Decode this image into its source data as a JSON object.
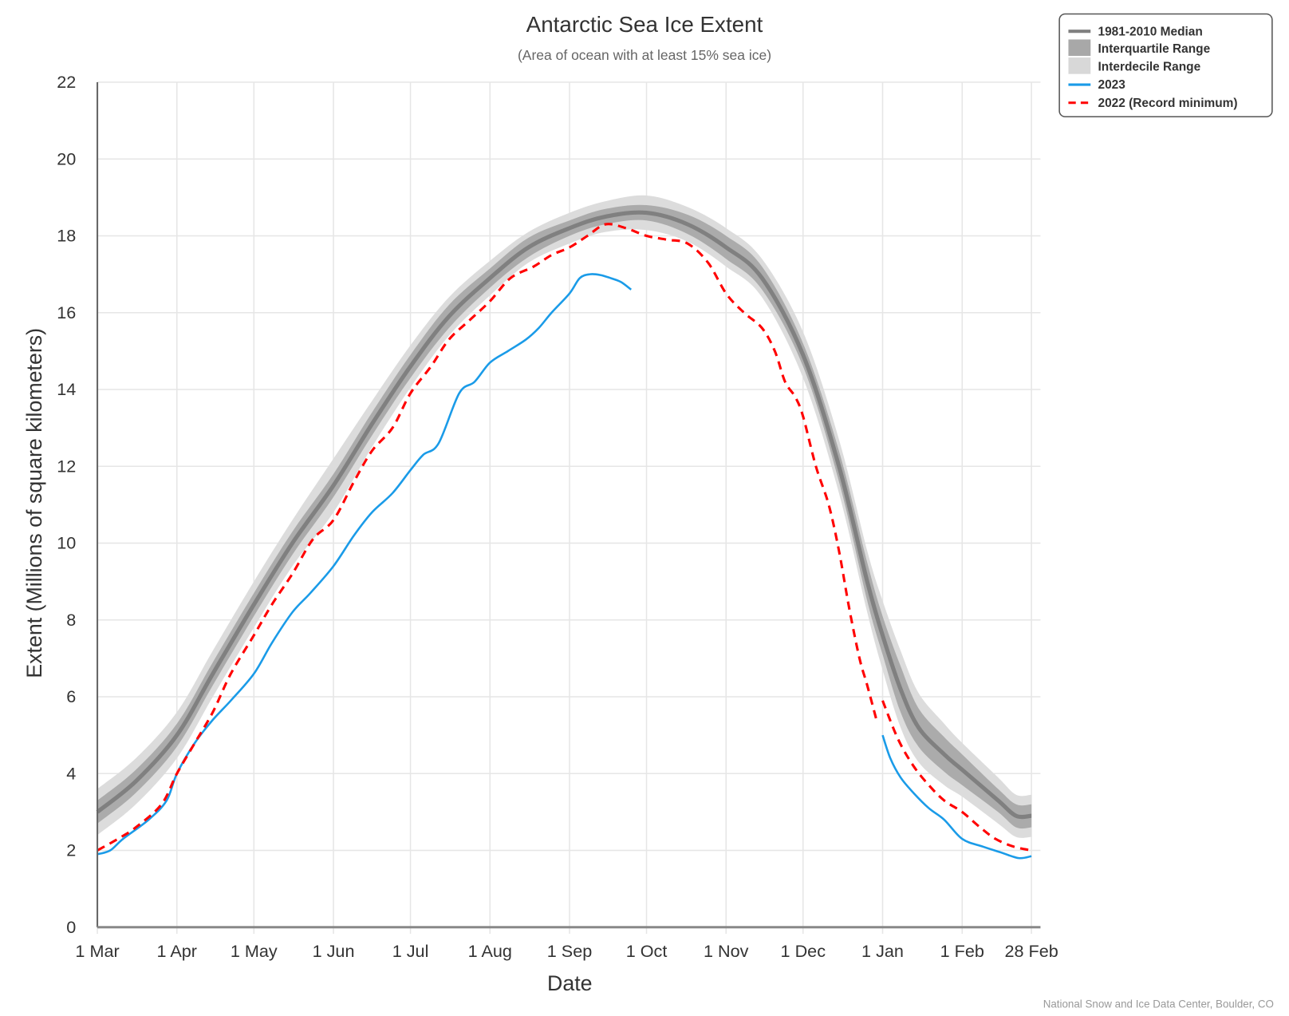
{
  "chart_data": {
    "type": "line",
    "title": "Antarctic Sea Ice Extent",
    "subtitle": "(Area of ocean with at least 15% sea ice)",
    "xlabel": "Date",
    "ylabel": "Extent (Millions of square kilometers)",
    "x_units": "days since 1 Mar",
    "xlim": [
      0,
      364
    ],
    "ylim": [
      0,
      22
    ],
    "yticks": [
      0,
      2,
      4,
      6,
      8,
      10,
      12,
      14,
      16,
      18,
      20,
      22
    ],
    "xticks": [
      {
        "day": 0,
        "label": "1 Mar"
      },
      {
        "day": 31,
        "label": "1 Apr"
      },
      {
        "day": 61,
        "label": "1 May"
      },
      {
        "day": 92,
        "label": "1 Jun"
      },
      {
        "day": 122,
        "label": "1 Jul"
      },
      {
        "day": 153,
        "label": "1 Aug"
      },
      {
        "day": 184,
        "label": "1 Sep"
      },
      {
        "day": 214,
        "label": "1 Oct"
      },
      {
        "day": 245,
        "label": "1 Nov"
      },
      {
        "day": 275,
        "label": "1 Dec"
      },
      {
        "day": 306,
        "label": "1 Jan"
      },
      {
        "day": 337,
        "label": "1 Feb"
      },
      {
        "day": 364,
        "label": "28 Feb"
      }
    ],
    "grid": true,
    "legend_position": "top-right",
    "legend": [
      "1981-2010 Median",
      "Interquartile Range",
      "Interdecile Range",
      "2023",
      "2022 (Record minimum)"
    ],
    "median": {
      "name": "1981-2010 Median",
      "color": "#808080",
      "x": [
        0,
        15,
        31,
        45,
        61,
        76,
        92,
        107,
        122,
        137,
        153,
        168,
        184,
        198,
        214,
        230,
        245,
        259,
        275,
        289,
        300,
        306,
        313,
        320,
        330,
        337,
        351,
        358,
        364
      ],
      "y": [
        3.0,
        3.8,
        5.0,
        6.6,
        8.4,
        10.0,
        11.5,
        13.1,
        14.6,
        15.9,
        16.9,
        17.7,
        18.2,
        18.5,
        18.6,
        18.3,
        17.7,
        16.9,
        14.9,
        12.0,
        9.0,
        7.6,
        6.2,
        5.2,
        4.5,
        4.1,
        3.3,
        2.9,
        2.9
      ],
      "iqr": [
        0.3,
        0.3,
        0.3,
        0.3,
        0.3,
        0.3,
        0.3,
        0.3,
        0.3,
        0.3,
        0.25,
        0.25,
        0.2,
        0.2,
        0.2,
        0.25,
        0.3,
        0.3,
        0.3,
        0.4,
        0.5,
        0.5,
        0.6,
        0.5,
        0.45,
        0.4,
        0.3,
        0.3,
        0.3
      ],
      "idr": [
        0.6,
        0.6,
        0.6,
        0.6,
        0.6,
        0.6,
        0.7,
        0.6,
        0.55,
        0.5,
        0.45,
        0.4,
        0.4,
        0.4,
        0.45,
        0.45,
        0.5,
        0.5,
        0.6,
        0.7,
        0.8,
        0.9,
        1.0,
        0.9,
        0.8,
        0.7,
        0.6,
        0.55,
        0.55
      ]
    },
    "series": [
      {
        "name": "2023",
        "color": "#1a9be8",
        "style": "solid",
        "segments": [
          {
            "x": [
              0,
              5,
              10,
              20,
              27,
              31,
              38,
              45,
              52,
              61,
              68,
              76,
              83,
              92,
              100,
              107,
              115,
              122,
              127,
              133,
              141,
              147,
              153,
              160,
              167,
              172,
              177,
              184,
              188,
              192,
              196,
              200,
              204,
              208
            ],
            "y": [
              1.9,
              2.0,
              2.3,
              2.8,
              3.3,
              4.0,
              4.8,
              5.4,
              5.9,
              6.6,
              7.4,
              8.2,
              8.7,
              9.4,
              10.2,
              10.8,
              11.3,
              11.9,
              12.3,
              12.6,
              13.9,
              14.2,
              14.7,
              15.0,
              15.3,
              15.6,
              16.0,
              16.5,
              16.9,
              17.0,
              16.98,
              16.9,
              16.8,
              16.6
            ]
          },
          {
            "x": [
              306,
              309,
              313,
              318,
              324,
              330,
              337,
              345,
              352,
              359,
              364
            ],
            "y": [
              5.0,
              4.4,
              3.9,
              3.5,
              3.1,
              2.8,
              2.3,
              2.1,
              1.95,
              1.8,
              1.85
            ]
          }
        ]
      },
      {
        "name": "2022 (Record minimum)",
        "color": "#ff0000",
        "style": "dashed",
        "segments": [
          {
            "x": [
              0,
              8,
              15,
              25,
              31,
              38,
              45,
              52,
              61,
              68,
              76,
              84,
              92,
              100,
              107,
              115,
              122,
              130,
              137,
              145,
              153,
              161,
              170,
              177,
              184,
              191,
              198,
              206,
              214,
              222,
              230,
              238,
              245,
              252,
              259,
              264,
              268,
              272,
              275,
              280,
              285,
              289,
              293,
              297,
              300,
              304
            ],
            "y": [
              2.0,
              2.3,
              2.6,
              3.2,
              4.0,
              4.8,
              5.6,
              6.6,
              7.6,
              8.4,
              9.2,
              10.1,
              10.6,
              11.6,
              12.4,
              13.0,
              13.9,
              14.6,
              15.3,
              15.8,
              16.3,
              16.9,
              17.2,
              17.5,
              17.7,
              18.0,
              18.3,
              18.2,
              18.0,
              17.9,
              17.8,
              17.3,
              16.5,
              16.0,
              15.6,
              15.0,
              14.2,
              13.8,
              13.3,
              12.0,
              11.0,
              9.8,
              8.3,
              7.0,
              6.3,
              5.3
            ]
          },
          {
            "x": [
              306,
              312,
              318,
              324,
              330,
              337,
              344,
              350,
              357,
              364
            ],
            "y": [
              5.9,
              4.9,
              4.2,
              3.7,
              3.3,
              3.0,
              2.6,
              2.3,
              2.1,
              2.0
            ]
          }
        ]
      }
    ],
    "credit": "National Snow and Ice Data Center, Boulder, CO"
  }
}
